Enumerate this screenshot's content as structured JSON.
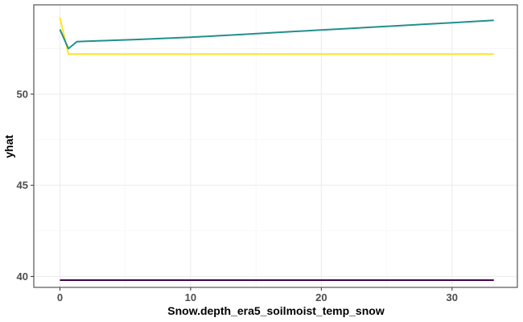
{
  "chart_data": {
    "type": "line",
    "xlabel": "Snow.depth_era5_soilmoist_temp_snow",
    "ylabel": "yhat",
    "xlim": [
      -2,
      35
    ],
    "ylim": [
      39.4,
      54.9
    ],
    "x_ticks": [
      0,
      10,
      20,
      30
    ],
    "y_ticks": [
      40,
      45,
      50
    ],
    "grid": true,
    "legend": "none",
    "series": [
      {
        "color": "#FDE725",
        "x": [
          0,
          0.65,
          1.3,
          33.2
        ],
        "y": [
          54.2,
          52.2,
          52.2,
          52.2
        ]
      },
      {
        "color": "#21908C",
        "x": [
          0,
          0.65,
          1.3,
          2,
          4,
          6,
          8,
          10,
          12,
          14,
          16,
          18,
          20,
          22,
          24,
          26,
          28,
          30,
          32,
          33.2
        ],
        "y": [
          53.55,
          52.5,
          52.88,
          52.9,
          52.95,
          53.0,
          53.06,
          53.12,
          53.2,
          53.28,
          53.36,
          53.44,
          53.52,
          53.6,
          53.68,
          53.76,
          53.84,
          53.92,
          54.0,
          54.05
        ]
      },
      {
        "color": "#440154",
        "x": [
          0,
          33.2
        ],
        "y": [
          39.8,
          39.8
        ]
      }
    ]
  }
}
